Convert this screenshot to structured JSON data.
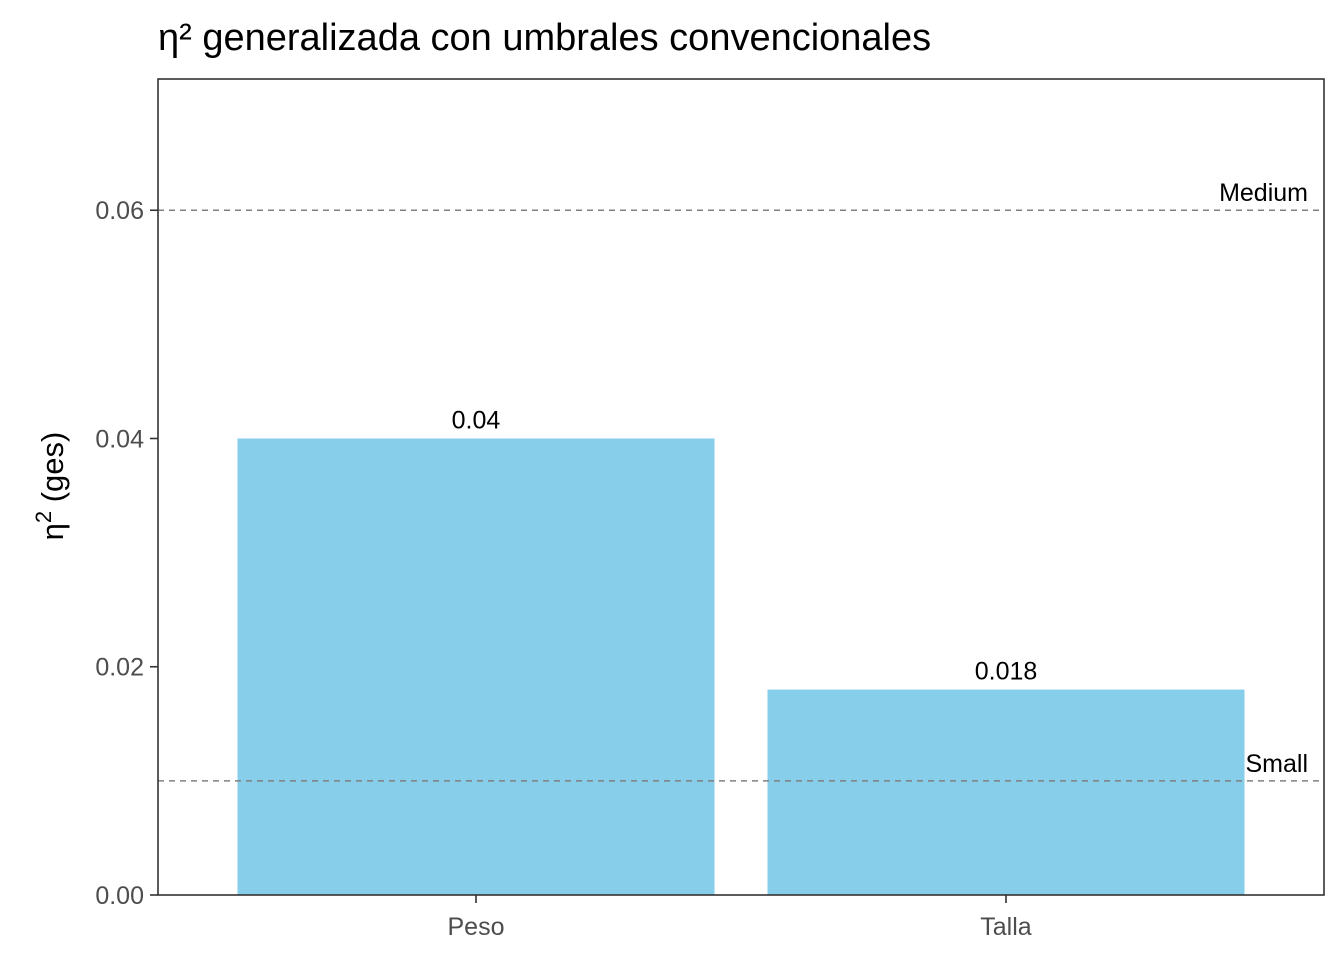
{
  "chart_data": {
    "type": "bar",
    "title": "η² generalizada con umbrales convencionales",
    "xlabel": "",
    "ylabel_base": "η",
    "ylabel_sup": "2",
    "ylabel_rest": " (ges)",
    "categories": [
      "Peso",
      "Talla"
    ],
    "values": [
      0.04,
      0.018
    ],
    "data_labels": [
      "0.04",
      "0.018"
    ],
    "ylim": [
      0,
      0.0715
    ],
    "y_ticks": [
      0.0,
      0.02,
      0.04,
      0.06
    ],
    "y_tick_labels": [
      "0.00",
      "0.02",
      "0.04",
      "0.06"
    ],
    "grid": false,
    "reference_lines": [
      {
        "label": "Small",
        "value": 0.01
      },
      {
        "label": "Medium",
        "value": 0.06
      }
    ],
    "colors": {
      "bar": "#87CEEB",
      "reference_line": "#808080",
      "panel_border": "#333333"
    }
  }
}
